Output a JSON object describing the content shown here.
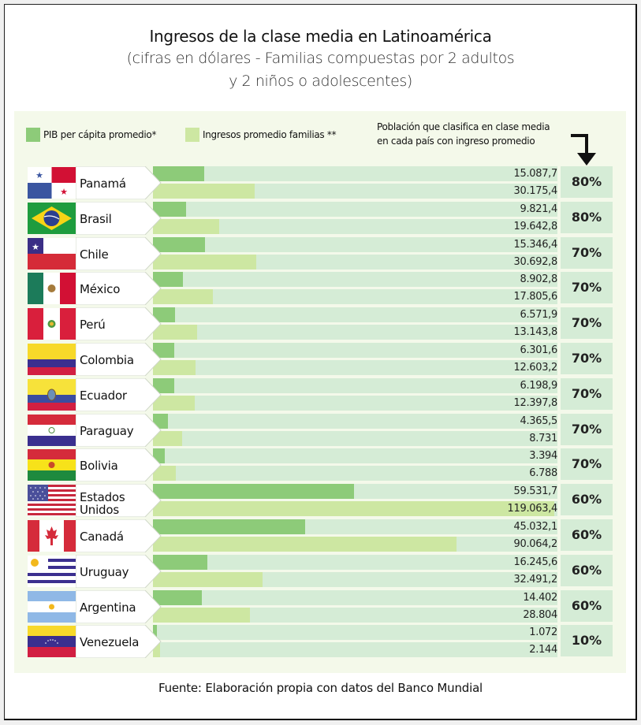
{
  "title": "Ingresos de la clase media en Latinoamérica",
  "subtitle_line1": "(cifras en dólares - Familias compuestas por 2 adultos",
  "subtitle_line2": "y 2 niños o adolescentes)",
  "source": "Fuente: Elaboración propia con datos del Banco Mundial",
  "colors": {
    "pib": "#8dcb79",
    "ingresos": "#cde7a2",
    "track": "#d5ecd6",
    "panel": "#f4f9ea"
  },
  "legend": {
    "pib": "PIB per cápita promedio*",
    "ingresos": "Ingresos promedio familias **",
    "population_line1": "Población que clasifica en clase media",
    "population_line2": "en cada país con ingreso promedio"
  },
  "chart_data": {
    "type": "bar",
    "title": "Ingresos de la clase media en Latinoamérica",
    "subtitle": "(cifras en dólares - Familias compuestas por 2 adultos y 2 niños o adolescentes)",
    "xlabel": "",
    "ylabel": "",
    "xlim": [
      0,
      120000
    ],
    "categories": [
      "Panamá",
      "Brasil",
      "Chile",
      "México",
      "Perú",
      "Colombia",
      "Ecuador",
      "Paraguay",
      "Bolivia",
      "Estados Unidos",
      "Canadá",
      "Uruguay",
      "Argentina",
      "Venezuela"
    ],
    "series": [
      {
        "name": "PIB per cápita promedio*",
        "values": [
          15087.7,
          9821.4,
          15346.4,
          8902.8,
          6571.9,
          6301.6,
          6198.9,
          4365.5,
          3394,
          59531.7,
          45032.1,
          16245.6,
          14402,
          1072
        ]
      },
      {
        "name": "Ingresos promedio familias **",
        "values": [
          30175.4,
          19642.8,
          30692.8,
          17805.6,
          13143.8,
          12603.2,
          12397.8,
          8731,
          6788,
          119063.4,
          90064.2,
          32491.2,
          28804,
          2144
        ]
      }
    ],
    "population_pct": [
      80,
      80,
      70,
      70,
      70,
      70,
      70,
      70,
      70,
      60,
      60,
      60,
      60,
      10
    ],
    "legend_position": "top-left"
  },
  "rows": [
    {
      "country": "Panamá",
      "flag": "panama-flag",
      "pib": "15.087,7",
      "ing": "30.175,4",
      "pct": "80%"
    },
    {
      "country": "Brasil",
      "flag": "brazil-flag",
      "pib": "9.821,4",
      "ing": "19.642,8",
      "pct": "80%"
    },
    {
      "country": "Chile",
      "flag": "chile-flag",
      "pib": "15.346,4",
      "ing": "30.692,8",
      "pct": "70%"
    },
    {
      "country": "México",
      "flag": "mexico-flag",
      "pib": "8.902,8",
      "ing": "17.805,6",
      "pct": "70%"
    },
    {
      "country": "Perú",
      "flag": "peru-flag",
      "pib": "6.571,9",
      "ing": "13.143,8",
      "pct": "70%"
    },
    {
      "country": "Colombia",
      "flag": "colombia-flag",
      "pib": "6.301,6",
      "ing": "12.603,2",
      "pct": "70%"
    },
    {
      "country": "Ecuador",
      "flag": "ecuador-flag",
      "pib": "6.198,9",
      "ing": "12.397,8",
      "pct": "70%"
    },
    {
      "country": "Paraguay",
      "flag": "paraguay-flag",
      "pib": "4.365,5",
      "ing": "8.731",
      "pct": "70%"
    },
    {
      "country": "Bolivia",
      "flag": "bolivia-flag",
      "pib": "3.394",
      "ing": "6.788",
      "pct": "70%"
    },
    {
      "country_line1": "Estados",
      "country_line2": "Unidos",
      "flag": "usa-flag",
      "pib": "59.531,7",
      "ing": "119.063,4",
      "pct": "60%"
    },
    {
      "country": "Canadá",
      "flag": "canada-flag",
      "pib": "45.032,1",
      "ing": "90.064,2",
      "pct": "60%"
    },
    {
      "country": "Uruguay",
      "flag": "uruguay-flag",
      "pib": "16.245,6",
      "ing": "32.491,2",
      "pct": "60%"
    },
    {
      "country": "Argentina",
      "flag": "argentina-flag",
      "pib": "14.402",
      "ing": "28.804",
      "pct": "60%"
    },
    {
      "country": "Venezuela",
      "flag": "venezuela-flag",
      "pib": "1.072",
      "ing": "2.144",
      "pct": "10%"
    }
  ]
}
